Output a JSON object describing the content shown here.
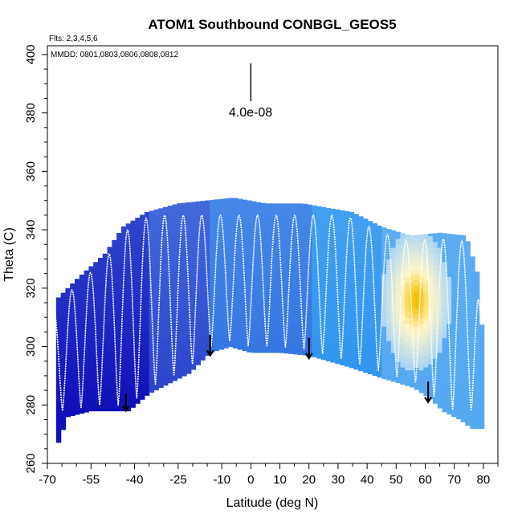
{
  "chart_data": {
    "type": "heatmap",
    "title": "ATOM1 Southbound CONBGL_GEOS5",
    "xlabel": "Latitude (deg N)",
    "ylabel": "Theta (C)",
    "xlim": [
      -70,
      85
    ],
    "ylim": [
      260,
      403
    ],
    "x_ticks": [
      -70,
      -55,
      -40,
      -25,
      -10,
      0,
      10,
      20,
      30,
      40,
      50,
      60,
      70,
      80
    ],
    "x_tick_labels": [
      "-70",
      "-55",
      "-40",
      "-25",
      "-10",
      "0",
      "10",
      "20",
      "30",
      "40",
      "50",
      "60",
      "70",
      "80"
    ],
    "y_ticks": [
      260,
      280,
      300,
      320,
      340,
      360,
      380,
      400
    ],
    "y_tick_labels": [
      "260",
      "280",
      "300",
      "320",
      "340",
      "360",
      "380",
      "400"
    ],
    "annotations": {
      "flights": "Flts: 2,3,4,5,6",
      "dates": "MMDD: 0801,0803,0806,0808,0812",
      "scale_value": "4.0e-08"
    },
    "scale_bar": {
      "x": 0,
      "y_range": [
        384,
        397
      ]
    },
    "lower_boundary": [
      [
        -67,
        265
      ],
      [
        -63,
        276
      ],
      [
        -55,
        278
      ],
      [
        -42,
        278
      ],
      [
        -35,
        284
      ],
      [
        -21,
        291
      ],
      [
        -14,
        298
      ],
      [
        -7,
        300
      ],
      [
        0,
        298
      ],
      [
        10,
        298
      ],
      [
        20,
        297
      ],
      [
        34,
        293
      ],
      [
        46,
        289
      ],
      [
        56,
        286
      ],
      [
        62,
        282
      ],
      [
        66,
        278
      ],
      [
        72,
        275
      ],
      [
        76,
        272
      ]
    ],
    "top_boundary": [
      [
        -67,
        316
      ],
      [
        -60,
        323
      ],
      [
        -50,
        332
      ],
      [
        -44,
        341
      ],
      [
        -36,
        346
      ],
      [
        -25,
        349
      ],
      [
        -6,
        351
      ],
      [
        5,
        349
      ],
      [
        18,
        349
      ],
      [
        35,
        346
      ],
      [
        45,
        341
      ],
      [
        55,
        338
      ],
      [
        65,
        339
      ],
      [
        74,
        338
      ],
      [
        78,
        325
      ],
      [
        80,
        300
      ]
    ],
    "color_regions": [
      {
        "name": "deep-south",
        "x_range": [
          -68,
          -35
        ],
        "color": "#1010b8"
      },
      {
        "name": "south-mid",
        "x_range": [
          -35,
          -15
        ],
        "color": "#2a40cc"
      },
      {
        "name": "tropics",
        "x_range": [
          -15,
          20
        ],
        "color": "#2f6fe0"
      },
      {
        "name": "north-mid",
        "x_range": [
          20,
          45
        ],
        "color": "#2d93ee"
      },
      {
        "name": "north-high",
        "x_range": [
          45,
          80
        ],
        "color": "#55a8f2"
      }
    ],
    "hotspot": {
      "x_range": [
        50,
        62
      ],
      "y_range": [
        302,
        330
      ],
      "peak_color": "#f4c20a"
    },
    "flight_track": {
      "x_range": [
        -68,
        79
      ],
      "oscillations": 23,
      "y_low": 278,
      "y_high": 345
    },
    "arrows": [
      {
        "x": -43,
        "y_top": 284,
        "y_bottom": 278
      },
      {
        "x": -14,
        "y_top": 304,
        "y_bottom": 297
      },
      {
        "x": 20,
        "y_top": 303,
        "y_bottom": 296
      },
      {
        "x": 61,
        "y_top": 288,
        "y_bottom": 281
      }
    ],
    "colors": {
      "track": "#ffffff",
      "axis": "#000000",
      "yellow": "#f4c20a",
      "pale": "#fff6c8"
    }
  }
}
